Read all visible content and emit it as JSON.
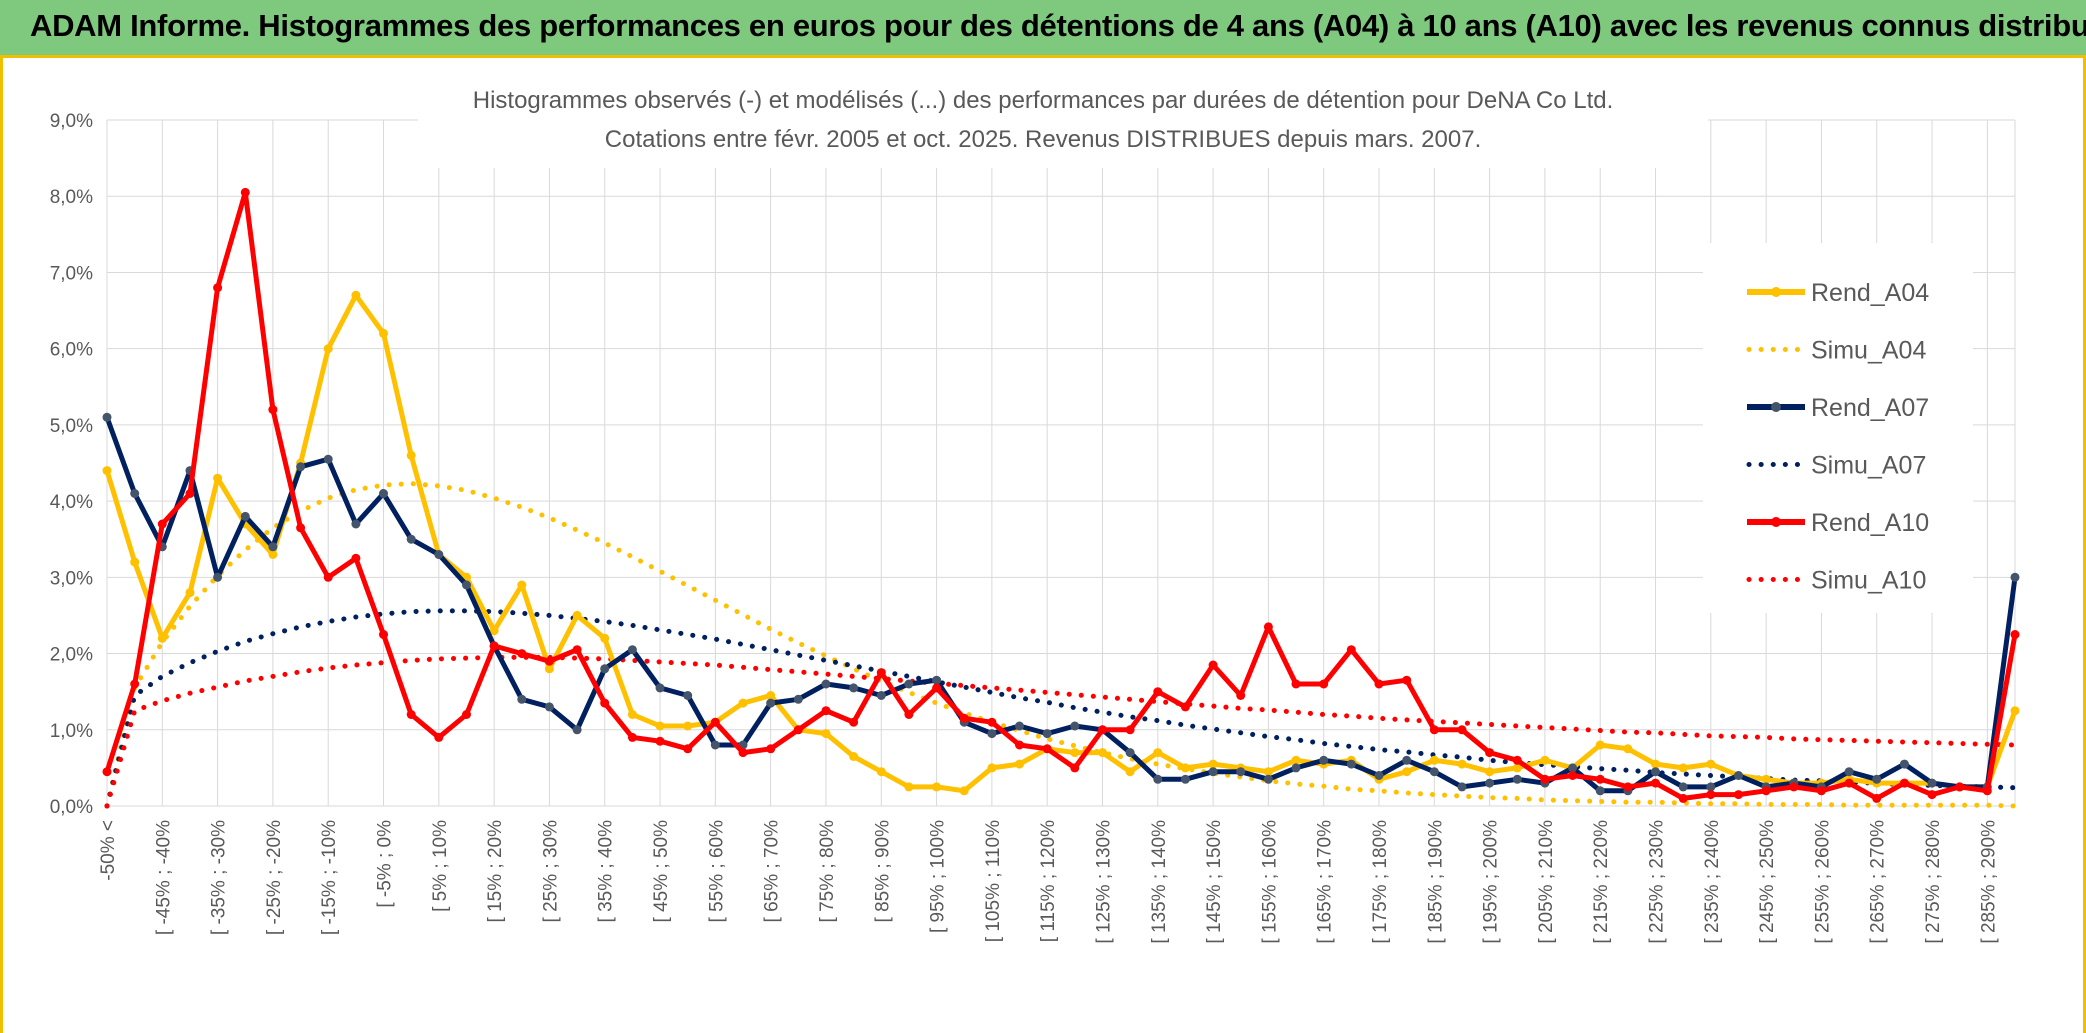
{
  "banner": {
    "title": "ADAM Informe. Histogrammes des performances en euros pour des détentions de 4 ans (A04) à 10 ans (A10) avec les revenus connus distribués"
  },
  "colors": {
    "banner_bg": "#7fc97f",
    "frame_accent": "#f0c000",
    "gridline": "#d9d9d9",
    "text": "#595959",
    "a04": "#ffc000",
    "a07": "#002060",
    "a07_marker": "#44546a",
    "a10": "#ff0000"
  },
  "chart_data": {
    "type": "line",
    "title": "Histogrammes observés (-) et modélisés (...) des performances par durées de détention pour DeNA Co Ltd.",
    "subtitle": "Cotations entre févr. 2005 et oct. 2025. Revenus DISTRIBUES depuis mars. 2007.",
    "ylim": [
      0,
      9
    ],
    "y_ticks": [
      "0,0%",
      "1,0%",
      "2,0%",
      "3,0%",
      "4,0%",
      "5,0%",
      "6,0%",
      "7,0%",
      "8,0%",
      "9,0%"
    ],
    "grid": true,
    "legend_position": "right",
    "x_labels": [
      "-50% <",
      "[ -45% ; -40%",
      "[ -35% ; -30%",
      "[ -25% ; -20%",
      "[ -15% ; -10%",
      "[ -5% ; 0%",
      "[ 5% ; 10%",
      "[ 15% ; 20%",
      "[ 25% ; 30%",
      "[ 35% ; 40%",
      "[ 45% ; 50%",
      "[ 55% ; 60%",
      "[ 65% ; 70%",
      "[ 75% ; 80%",
      "[ 85% ; 90%",
      "[ 95% ; 100%",
      "[ 105% ; 110%",
      "[ 115% ; 120%",
      "[ 125% ; 130%",
      "[ 135% ; 140%",
      "[ 145% ; 150%",
      "[ 155% ; 160%",
      "[ 165% ; 170%",
      "[ 175% ; 180%",
      "[ 185% ; 190%",
      "[ 195% ; 200%",
      "[ 205% ; 210%",
      "[ 215% ; 220%",
      "[ 225% ; 230%",
      "[ 235% ; 240%",
      "[ 245% ; 250%",
      "[ 255% ; 260%",
      "[ 265% ; 270%",
      "[ 275% ; 280%",
      "[ 285% ; 290%"
    ],
    "n_categories": 70,
    "series": [
      {
        "name": "Rend_A04",
        "style": "solid",
        "color": "#ffc000",
        "values": [
          4.4,
          3.2,
          2.2,
          2.8,
          4.3,
          3.7,
          3.3,
          4.5,
          6.0,
          6.7,
          6.2,
          4.6,
          3.3,
          3.0,
          2.3,
          2.9,
          1.8,
          2.5,
          2.2,
          1.2,
          1.05,
          1.05,
          1.1,
          1.35,
          1.45,
          1.0,
          0.95,
          0.65,
          0.45,
          0.25,
          0.25,
          0.2,
          0.5,
          0.55,
          0.75,
          0.7,
          0.7,
          0.45,
          0.7,
          0.5,
          0.55,
          0.5,
          0.45,
          0.6,
          0.55,
          0.6,
          0.35,
          0.45,
          0.6,
          0.55,
          0.45,
          0.5,
          0.6,
          0.5,
          0.8,
          0.75,
          0.55,
          0.5,
          0.55,
          0.4,
          0.35,
          0.3,
          0.3,
          0.35,
          0.3,
          0.3,
          0.3,
          0.25,
          0.25,
          1.25
        ]
      },
      {
        "name": "Simu_A04",
        "style": "dotted",
        "color": "#ffc000",
        "values": [
          0.0,
          1.55,
          2.15,
          2.62,
          3.02,
          3.36,
          3.65,
          3.87,
          4.04,
          4.15,
          4.21,
          4.23,
          4.2,
          4.14,
          4.04,
          3.92,
          3.78,
          3.62,
          3.45,
          3.27,
          3.08,
          2.89,
          2.7,
          2.51,
          2.32,
          2.14,
          1.97,
          1.8,
          1.64,
          1.49,
          1.35,
          1.22,
          1.1,
          0.99,
          0.88,
          0.79,
          0.7,
          0.62,
          0.55,
          0.49,
          0.43,
          0.38,
          0.33,
          0.29,
          0.26,
          0.22,
          0.2,
          0.17,
          0.15,
          0.13,
          0.11,
          0.1,
          0.08,
          0.07,
          0.06,
          0.05,
          0.05,
          0.04,
          0.03,
          0.03,
          0.02,
          0.02,
          0.02,
          0.01,
          0.01,
          0.01,
          0.01,
          0.01,
          0.01,
          0.0
        ]
      },
      {
        "name": "Rend_A07",
        "style": "solid",
        "color": "#002060",
        "values": [
          5.1,
          4.1,
          3.4,
          4.4,
          3.0,
          3.8,
          3.4,
          4.45,
          4.55,
          3.7,
          4.1,
          3.5,
          3.3,
          2.9,
          2.1,
          1.4,
          1.3,
          1.0,
          1.8,
          2.05,
          1.55,
          1.45,
          0.8,
          0.8,
          1.35,
          1.4,
          1.6,
          1.55,
          1.45,
          1.6,
          1.65,
          1.1,
          0.95,
          1.05,
          0.95,
          1.05,
          1.0,
          0.7,
          0.35,
          0.35,
          0.45,
          0.45,
          0.35,
          0.5,
          0.6,
          0.55,
          0.4,
          0.6,
          0.45,
          0.25,
          0.3,
          0.35,
          0.3,
          0.5,
          0.2,
          0.2,
          0.45,
          0.25,
          0.25,
          0.4,
          0.25,
          0.3,
          0.25,
          0.45,
          0.35,
          0.55,
          0.3,
          0.25,
          0.25,
          3.0
        ]
      },
      {
        "name": "Simu_A07",
        "style": "dotted",
        "color": "#002060",
        "values": [
          0.0,
          1.45,
          1.7,
          1.88,
          2.03,
          2.16,
          2.26,
          2.35,
          2.42,
          2.48,
          2.52,
          2.55,
          2.56,
          2.56,
          2.55,
          2.53,
          2.5,
          2.46,
          2.42,
          2.37,
          2.31,
          2.25,
          2.19,
          2.12,
          2.05,
          1.98,
          1.91,
          1.84,
          1.77,
          1.7,
          1.63,
          1.56,
          1.49,
          1.42,
          1.36,
          1.29,
          1.23,
          1.17,
          1.12,
          1.06,
          1.01,
          0.96,
          0.91,
          0.87,
          0.82,
          0.78,
          0.74,
          0.71,
          0.67,
          0.64,
          0.6,
          0.57,
          0.54,
          0.52,
          0.49,
          0.47,
          0.44,
          0.42,
          0.4,
          0.38,
          0.36,
          0.34,
          0.33,
          0.31,
          0.3,
          0.28,
          0.27,
          0.26,
          0.25,
          0.24
        ]
      },
      {
        "name": "Rend_A10",
        "style": "solid",
        "color": "#ff0000",
        "values": [
          0.45,
          1.6,
          3.7,
          4.1,
          6.8,
          8.05,
          5.2,
          3.65,
          3.0,
          3.25,
          2.25,
          1.2,
          0.9,
          1.2,
          2.1,
          2.0,
          1.9,
          2.05,
          1.35,
          0.9,
          0.85,
          0.75,
          1.1,
          0.7,
          0.75,
          1.0,
          1.25,
          1.1,
          1.75,
          1.2,
          1.55,
          1.15,
          1.1,
          0.8,
          0.75,
          0.5,
          1.0,
          1.0,
          1.5,
          1.3,
          1.85,
          1.45,
          2.35,
          1.6,
          1.6,
          2.05,
          1.6,
          1.65,
          1.0,
          1.0,
          0.7,
          0.6,
          0.35,
          0.4,
          0.35,
          0.25,
          0.3,
          0.1,
          0.15,
          0.15,
          0.2,
          0.25,
          0.2,
          0.3,
          0.1,
          0.3,
          0.15,
          0.25,
          0.2,
          2.25
        ]
      },
      {
        "name": "Simu_A10",
        "style": "dotted",
        "color": "#ff0000",
        "values": [
          0.0,
          1.25,
          1.38,
          1.48,
          1.56,
          1.64,
          1.7,
          1.76,
          1.81,
          1.85,
          1.88,
          1.91,
          1.93,
          1.94,
          1.95,
          1.95,
          1.95,
          1.94,
          1.93,
          1.91,
          1.89,
          1.87,
          1.85,
          1.82,
          1.79,
          1.76,
          1.73,
          1.7,
          1.67,
          1.64,
          1.61,
          1.58,
          1.55,
          1.52,
          1.49,
          1.46,
          1.43,
          1.4,
          1.37,
          1.34,
          1.31,
          1.28,
          1.26,
          1.23,
          1.2,
          1.18,
          1.15,
          1.13,
          1.11,
          1.09,
          1.07,
          1.05,
          1.03,
          1.01,
          0.99,
          0.97,
          0.96,
          0.94,
          0.92,
          0.91,
          0.9,
          0.88,
          0.87,
          0.86,
          0.85,
          0.84,
          0.83,
          0.82,
          0.81,
          0.8
        ]
      }
    ]
  }
}
